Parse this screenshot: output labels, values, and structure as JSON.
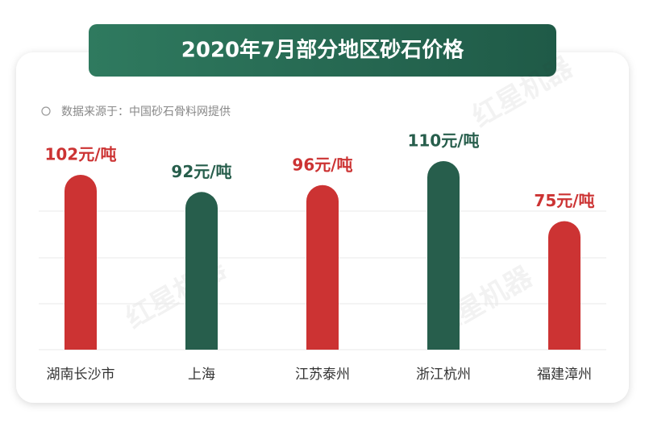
{
  "chart_data": {
    "type": "bar",
    "title": "2020年7月部分地区砂石价格",
    "source": "数据来源于：中国砂石骨料网提供",
    "watermark": "红星机器",
    "categories": [
      "湖南长沙市",
      "上海",
      "江苏泰州",
      "浙江杭州",
      "福建漳州"
    ],
    "values": [
      102,
      92,
      96,
      110,
      75
    ],
    "value_labels": [
      "102元/吨",
      "92元/吨",
      "96元/吨",
      "110元/吨",
      "75元/吨"
    ],
    "colors": [
      "#cc3333",
      "#275e4c",
      "#cc3333",
      "#275e4c",
      "#cc3333"
    ],
    "grid": true
  }
}
